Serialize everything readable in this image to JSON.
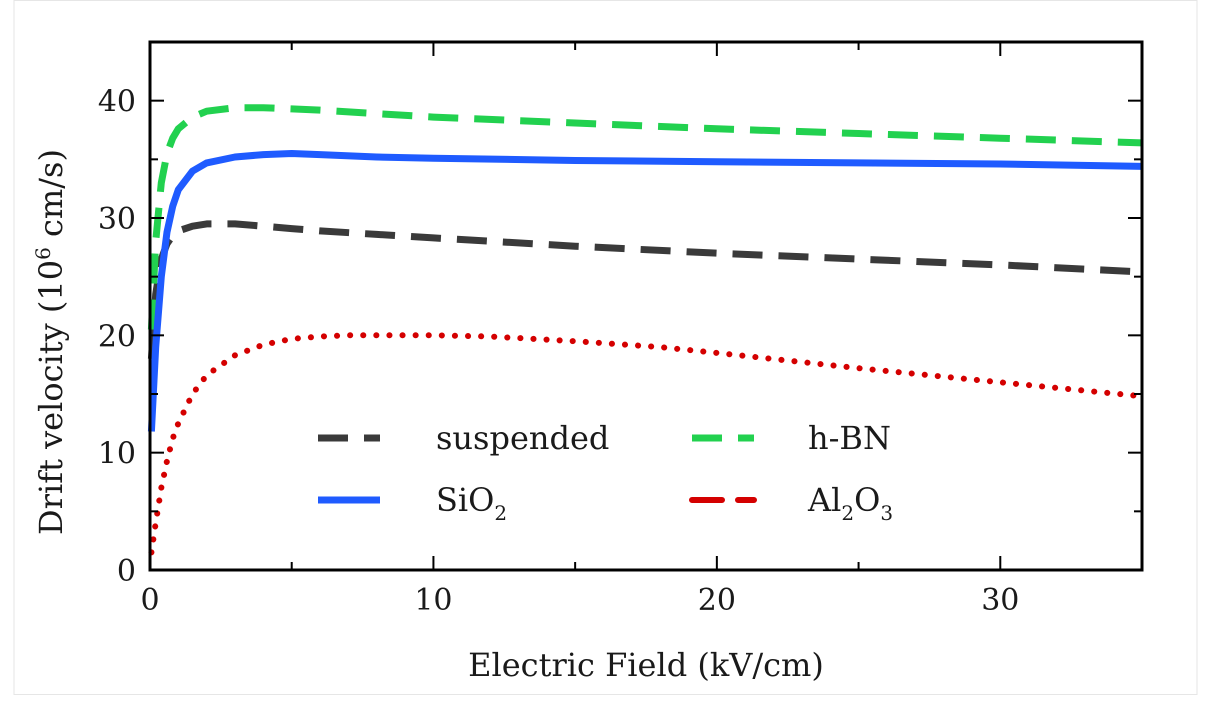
{
  "chart_data": {
    "type": "line",
    "title": "",
    "xlabel": "Electric Field (kV/cm)",
    "ylabel_main": "Drift velocity (10",
    "ylabel_sup": "6",
    "ylabel_tail": " cm/s)",
    "xlim": [
      0,
      35
    ],
    "ylim": [
      0,
      45
    ],
    "xticks": [
      0,
      10,
      20,
      30
    ],
    "yticks": [
      0,
      10,
      20,
      30,
      40
    ],
    "grid": false,
    "legend_position": "bottom-center",
    "series": [
      {
        "name": "suspended",
        "color": "#3a3a3a",
        "style": "dashed",
        "x": [
          0.05,
          0.2,
          0.4,
          0.6,
          0.8,
          1.0,
          1.5,
          2.0,
          3.0,
          4.0,
          5.0,
          6.0,
          8.0,
          10.0,
          15.0,
          20.0,
          25.0,
          30.0,
          35.0
        ],
        "y": [
          18.0,
          23.5,
          26.5,
          27.8,
          28.5,
          28.9,
          29.3,
          29.5,
          29.5,
          29.3,
          29.1,
          28.9,
          28.6,
          28.3,
          27.6,
          27.0,
          26.5,
          26.0,
          25.4
        ]
      },
      {
        "name": "h-BN",
        "color": "#22d14f",
        "style": "dashed",
        "x": [
          0.05,
          0.2,
          0.4,
          0.6,
          0.8,
          1.0,
          1.5,
          2.0,
          3.0,
          4.0,
          5.0,
          6.0,
          8.0,
          10.0,
          15.0,
          20.0,
          25.0,
          30.0,
          35.0
        ],
        "y": [
          20.5,
          28.0,
          33.0,
          35.5,
          36.8,
          37.6,
          38.6,
          39.1,
          39.4,
          39.4,
          39.3,
          39.2,
          38.9,
          38.6,
          38.1,
          37.6,
          37.2,
          36.8,
          36.4
        ]
      },
      {
        "name": "SiO",
        "name_sub": "2",
        "color": "#1f5bff",
        "style": "solid",
        "x": [
          0.05,
          0.2,
          0.4,
          0.6,
          0.8,
          1.0,
          1.5,
          2.0,
          3.0,
          4.0,
          5.0,
          6.0,
          8.0,
          10.0,
          15.0,
          20.0,
          25.0,
          30.0,
          35.0
        ],
        "y": [
          11.8,
          19.0,
          25.0,
          28.8,
          31.0,
          32.4,
          34.0,
          34.7,
          35.2,
          35.4,
          35.5,
          35.4,
          35.2,
          35.1,
          34.9,
          34.8,
          34.7,
          34.6,
          34.4
        ]
      },
      {
        "name": "Al",
        "name_sub": "2",
        "name_mid": "O",
        "name_sub2": "3",
        "color": "#d40000",
        "style": "dotted",
        "x": [
          0.05,
          0.2,
          0.4,
          0.6,
          0.8,
          1.0,
          1.5,
          2.0,
          3.0,
          4.0,
          5.0,
          6.0,
          7.0,
          8.0,
          10.0,
          12.0,
          15.0,
          18.0,
          20.0,
          25.0,
          30.0,
          35.0
        ],
        "y": [
          1.5,
          4.0,
          7.0,
          9.3,
          11.2,
          12.5,
          15.0,
          16.6,
          18.3,
          19.2,
          19.7,
          19.9,
          20.0,
          20.0,
          20.0,
          19.9,
          19.5,
          19.0,
          18.5,
          17.2,
          16.0,
          14.8
        ]
      }
    ]
  }
}
